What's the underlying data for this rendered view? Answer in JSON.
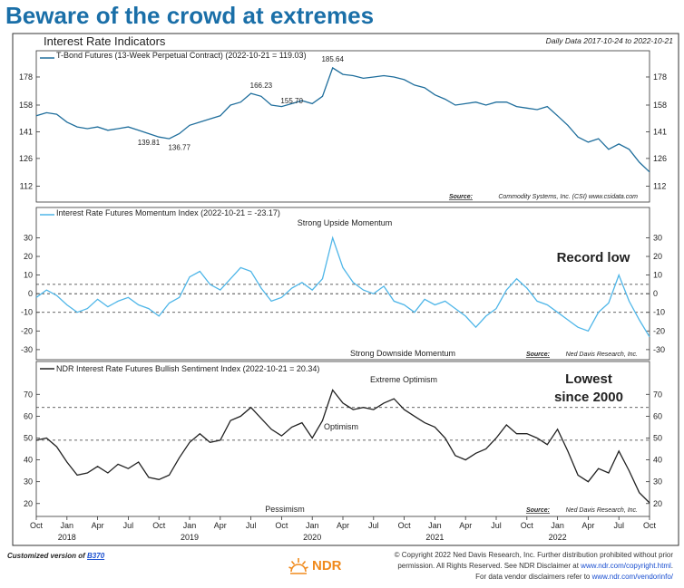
{
  "headline": "Beware of the crowd at extremes",
  "figure_title": "Interest Rate Indicators",
  "date_range": "Daily Data 2017-10-24 to 2022-10-21",
  "panel1": {
    "legend": "T-Bond Futures (13-Week Perpetual Contract) (2022-10-21 = 119.03)",
    "source_label": "Source:",
    "source_text": "Commodity Systems, Inc. (CSI) www.csidata.com",
    "line_color": "#1f6e9c"
  },
  "panel2": {
    "legend": "Interest Rate Futures Momentum Index (2022-10-21 = -23.17)",
    "top_note": "Strong Upside Momentum",
    "bottom_note": "Strong Downside Momentum",
    "callout": "Record low",
    "source_label": "Source:",
    "source_text": "Ned Davis Research, Inc.",
    "line_color": "#4fb6e8"
  },
  "panel3": {
    "legend": "NDR Interest Rate Futures Bullish Sentiment Index (2022-10-21 = 20.34)",
    "top_note": "Extreme Optimism",
    "mid_note": "Optimism",
    "bottom_note": "Pessimism",
    "callout_line1": "Lowest",
    "callout_line2": "since 2000",
    "source_label": "Source:",
    "source_text": "Ned Davis Research, Inc.",
    "line_color": "#222222"
  },
  "footer": {
    "left_prefix": "Customized version of",
    "left_link": "B370",
    "right_line1": "© Copyright 2022 Ned Davis Research, Inc. Further distribution prohibited without prior",
    "right_line2_a": "permission. All Rights Reserved. See NDR Disclaimer at",
    "right_line2_link": "www.ndr.com/copyright.html",
    "right_line2_b": ".",
    "right_line3_a": "For data vendor disclaimers refer to",
    "right_line3_link": "www.ndr.com/vendorinfo/",
    "logo_text": "NDR"
  },
  "chart_data": [
    {
      "type": "line",
      "panel": "T-Bond Futures (13-Week Perpetual Contract)",
      "x": [
        "2017-10",
        "2017-11",
        "2017-12",
        "2018-01",
        "2018-02",
        "2018-03",
        "2018-04",
        "2018-05",
        "2018-06",
        "2018-07",
        "2018-08",
        "2018-09",
        "2018-10",
        "2018-11",
        "2018-12",
        "2019-01",
        "2019-02",
        "2019-03",
        "2019-04",
        "2019-05",
        "2019-06",
        "2019-07",
        "2019-08",
        "2019-09",
        "2019-10",
        "2019-11",
        "2019-12",
        "2020-01",
        "2020-02",
        "2020-03",
        "2020-04",
        "2020-05",
        "2020-06",
        "2020-07",
        "2020-08",
        "2020-09",
        "2020-10",
        "2020-11",
        "2020-12",
        "2021-01",
        "2021-02",
        "2021-03",
        "2021-04",
        "2021-05",
        "2021-06",
        "2021-07",
        "2021-08",
        "2021-09",
        "2021-10",
        "2021-11",
        "2021-12",
        "2022-01",
        "2022-02",
        "2022-03",
        "2022-04",
        "2022-05",
        "2022-06",
        "2022-07",
        "2022-08",
        "2022-09",
        "2022-10"
      ],
      "values": [
        151,
        153,
        152,
        147,
        144,
        143,
        144,
        142,
        143,
        144,
        142,
        140,
        138,
        137,
        140,
        145,
        147,
        149,
        151,
        158,
        160,
        166,
        164,
        158,
        157,
        159,
        161,
        159,
        164,
        185,
        180,
        179,
        177,
        178,
        179,
        178,
        176,
        172,
        170,
        165,
        162,
        158,
        159,
        160,
        158,
        160,
        160,
        157,
        156,
        155,
        157,
        151,
        145,
        138,
        135,
        137,
        131,
        134,
        131,
        124,
        119
      ],
      "annotations": [
        {
          "x": "2018-09",
          "y": 139.81,
          "label": "139.81"
        },
        {
          "x": "2018-12",
          "y": 136.77,
          "label": "136.77"
        },
        {
          "x": "2019-08",
          "y": 166.23,
          "label": "166.23"
        },
        {
          "x": "2019-11",
          "y": 155.7,
          "label": "155.70"
        },
        {
          "x": "2020-03",
          "y": 185.64,
          "label": "185.64"
        }
      ],
      "yticks": [
        112,
        126,
        141,
        158,
        178
      ],
      "ylim": [
        108,
        190
      ],
      "scale": "log"
    },
    {
      "type": "line",
      "panel": "Interest Rate Futures Momentum Index",
      "x": [
        "2017-10",
        "2017-11",
        "2017-12",
        "2018-01",
        "2018-02",
        "2018-03",
        "2018-04",
        "2018-05",
        "2018-06",
        "2018-07",
        "2018-08",
        "2018-09",
        "2018-10",
        "2018-11",
        "2018-12",
        "2019-01",
        "2019-02",
        "2019-03",
        "2019-04",
        "2019-05",
        "2019-06",
        "2019-07",
        "2019-08",
        "2019-09",
        "2019-10",
        "2019-11",
        "2019-12",
        "2020-01",
        "2020-02",
        "2020-03",
        "2020-04",
        "2020-05",
        "2020-06",
        "2020-07",
        "2020-08",
        "2020-09",
        "2020-10",
        "2020-11",
        "2020-12",
        "2021-01",
        "2021-02",
        "2021-03",
        "2021-04",
        "2021-05",
        "2021-06",
        "2021-07",
        "2021-08",
        "2021-09",
        "2021-10",
        "2021-11",
        "2021-12",
        "2022-01",
        "2022-02",
        "2022-03",
        "2022-04",
        "2022-05",
        "2022-06",
        "2022-07",
        "2022-08",
        "2022-09",
        "2022-10"
      ],
      "values": [
        -2,
        2,
        -1,
        -6,
        -10,
        -8,
        -3,
        -7,
        -4,
        -2,
        -6,
        -8,
        -12,
        -5,
        -2,
        9,
        12,
        5,
        2,
        8,
        14,
        12,
        3,
        -4,
        -2,
        3,
        6,
        2,
        8,
        30,
        14,
        6,
        2,
        0,
        4,
        -4,
        -6,
        -10,
        -3,
        -6,
        -4,
        -8,
        -12,
        -18,
        -12,
        -8,
        2,
        8,
        3,
        -4,
        -6,
        -10,
        -14,
        -18,
        -20,
        -10,
        -5,
        10,
        -4,
        -14,
        -23.17
      ],
      "yticks": [
        -30,
        -20,
        -10,
        0,
        10,
        20,
        30
      ],
      "ylim": [
        -32,
        38
      ],
      "reference_lines": [
        -10,
        0,
        5
      ]
    },
    {
      "type": "line",
      "panel": "NDR Interest Rate Futures Bullish Sentiment Index",
      "x": [
        "2017-10",
        "2017-11",
        "2017-12",
        "2018-01",
        "2018-02",
        "2018-03",
        "2018-04",
        "2018-05",
        "2018-06",
        "2018-07",
        "2018-08",
        "2018-09",
        "2018-10",
        "2018-11",
        "2018-12",
        "2019-01",
        "2019-02",
        "2019-03",
        "2019-04",
        "2019-05",
        "2019-06",
        "2019-07",
        "2019-08",
        "2019-09",
        "2019-10",
        "2019-11",
        "2019-12",
        "2020-01",
        "2020-02",
        "2020-03",
        "2020-04",
        "2020-05",
        "2020-06",
        "2020-07",
        "2020-08",
        "2020-09",
        "2020-10",
        "2020-11",
        "2020-12",
        "2021-01",
        "2021-02",
        "2021-03",
        "2021-04",
        "2021-05",
        "2021-06",
        "2021-07",
        "2021-08",
        "2021-09",
        "2021-10",
        "2021-11",
        "2021-12",
        "2022-01",
        "2022-02",
        "2022-03",
        "2022-04",
        "2022-05",
        "2022-06",
        "2022-07",
        "2022-08",
        "2022-09",
        "2022-10"
      ],
      "values": [
        49,
        50,
        46,
        39,
        33,
        34,
        37,
        34,
        38,
        36,
        39,
        32,
        31,
        33,
        41,
        48,
        52,
        48,
        49,
        58,
        60,
        64,
        59,
        54,
        51,
        55,
        57,
        50,
        58,
        72,
        66,
        63,
        64,
        63,
        66,
        68,
        63,
        60,
        57,
        55,
        50,
        42,
        40,
        43,
        45,
        50,
        56,
        52,
        52,
        50,
        47,
        54,
        44,
        33,
        30,
        36,
        34,
        44,
        35,
        25,
        20.34
      ],
      "yticks": [
        20,
        30,
        40,
        50,
        60,
        70
      ],
      "ylim": [
        17,
        78
      ],
      "reference_lines": [
        49,
        64
      ]
    }
  ],
  "x_axis": {
    "months": [
      "Oct",
      "Jan",
      "Apr",
      "Jul",
      "Oct",
      "Jan",
      "Apr",
      "Jul",
      "Oct",
      "Jan",
      "Apr",
      "Jul",
      "Oct",
      "Jan",
      "Apr",
      "Jul",
      "Oct",
      "Jan",
      "Apr",
      "Jul",
      "Oct"
    ],
    "years": [
      "2018",
      "2019",
      "2020",
      "2021",
      "2022"
    ]
  }
}
